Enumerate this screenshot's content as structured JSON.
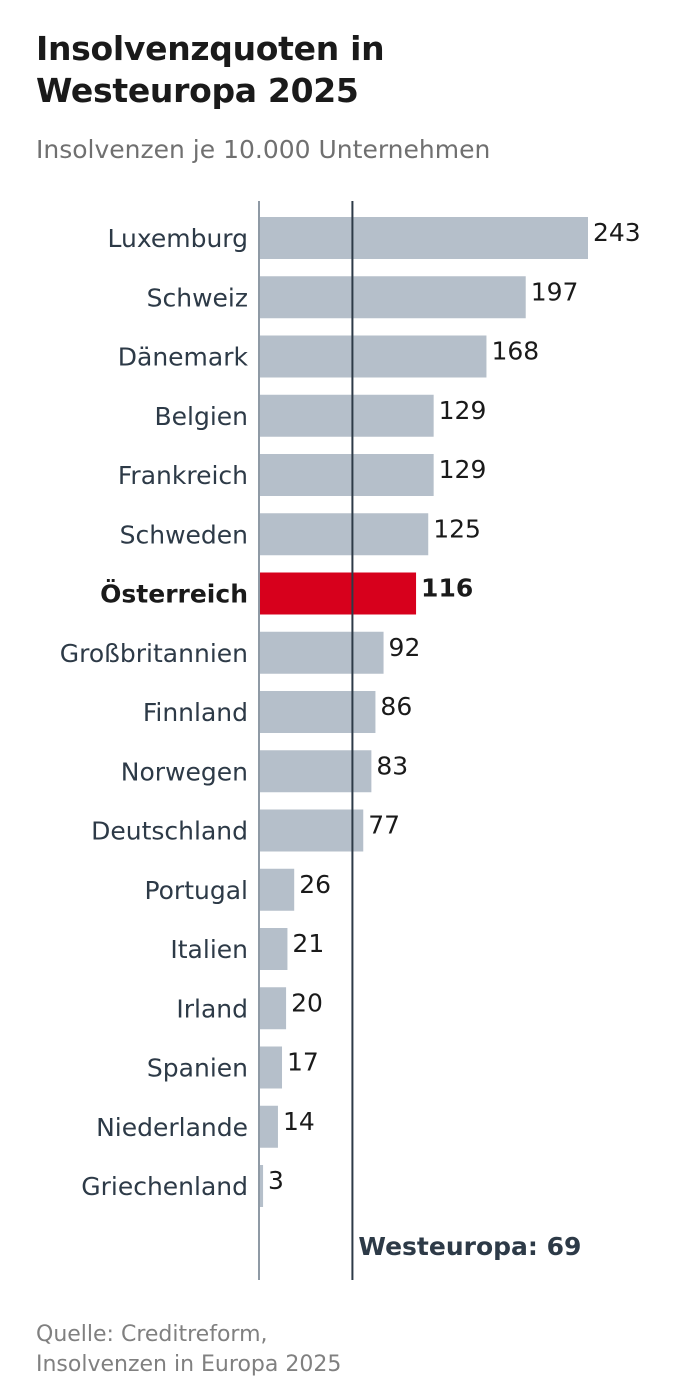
{
  "header": {
    "title_line1": "Insolvenzquoten in",
    "title_line2": "Westeuropa 2025",
    "subtitle": "Insolvenzen je 10.000 Unternehmen"
  },
  "source": {
    "line1": "Quelle: Creditreform,",
    "line2": "Insolvenzen in Europa 2025"
  },
  "chart_data": {
    "type": "bar",
    "orientation": "horizontal",
    "title": "Insolvenzquoten in Westeuropa 2025",
    "subtitle": "Insolvenzen je 10.000 Unternehmen",
    "categories": [
      "Luxemburg",
      "Schweiz",
      "Dänemark",
      "Belgien",
      "Frankreich",
      "Schweden",
      "Österreich",
      "Großbritannien",
      "Finnland",
      "Norwegen",
      "Deutschland",
      "Portugal",
      "Italien",
      "Irland",
      "Spanien",
      "Niederlande",
      "Griechenland"
    ],
    "values": [
      243,
      197,
      168,
      129,
      129,
      125,
      116,
      92,
      86,
      83,
      77,
      26,
      21,
      20,
      17,
      14,
      3
    ],
    "highlight": "Österreich",
    "reference_line": {
      "label": "Westeuropa: 69",
      "value": 69
    },
    "xlim": [
      0,
      243
    ],
    "grid": false,
    "colors": {
      "bar": "#b5bfca",
      "highlight": "#d7001c",
      "reference_line": "#2d3a47",
      "axis": "#8f9aa5",
      "category_text": "#2d3a47",
      "value_text": "#1a1a1a"
    }
  }
}
